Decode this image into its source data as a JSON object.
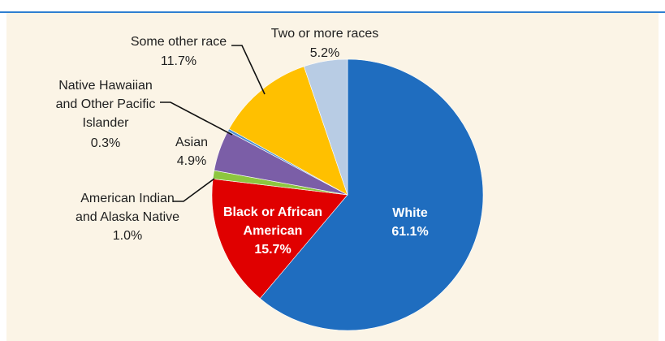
{
  "chart_data": {
    "type": "pie",
    "title": "",
    "unit": "%",
    "slices": [
      {
        "label": "White",
        "value": 61.1,
        "value_text": "61.1%",
        "color": "#1f6dbf"
      },
      {
        "label": "Black or African American",
        "value": 15.7,
        "value_text": "15.7%",
        "color": "#e00000"
      },
      {
        "label": "American Indian and Alaska Native",
        "value": 1.0,
        "value_text": "1.0%",
        "color": "#8dc63f"
      },
      {
        "label": "Asian",
        "value": 4.9,
        "value_text": "4.9%",
        "color": "#7b5ea7"
      },
      {
        "label": "Native Hawaiian and Other Pacific Islander",
        "value": 0.3,
        "value_text": "0.3%",
        "color": "#4f8fcf"
      },
      {
        "label": "Some other race",
        "value": 11.7,
        "value_text": "11.7%",
        "color": "#ffc000"
      },
      {
        "label": "Two or more races",
        "value": 5.2,
        "value_text": "5.2%",
        "color": "#b8cce4"
      }
    ],
    "labels": {
      "white": {
        "line1": "White",
        "value": "61.1%"
      },
      "black": {
        "line1": "Black or African",
        "line2": "American",
        "value": "15.7%"
      },
      "aian": {
        "line1": "American Indian",
        "line2": "and Alaska Native",
        "value": "1.0%"
      },
      "asian": {
        "line1": "Asian",
        "value": "4.9%"
      },
      "nhpi": {
        "line1": "Native Hawaiian",
        "line2": "and Other Pacific",
        "line3": "Islander",
        "value": "0.3%"
      },
      "other": {
        "line1": "Some other race",
        "value": "11.7%"
      },
      "two": {
        "line1": "Two or more races",
        "value": "5.2%"
      }
    }
  }
}
